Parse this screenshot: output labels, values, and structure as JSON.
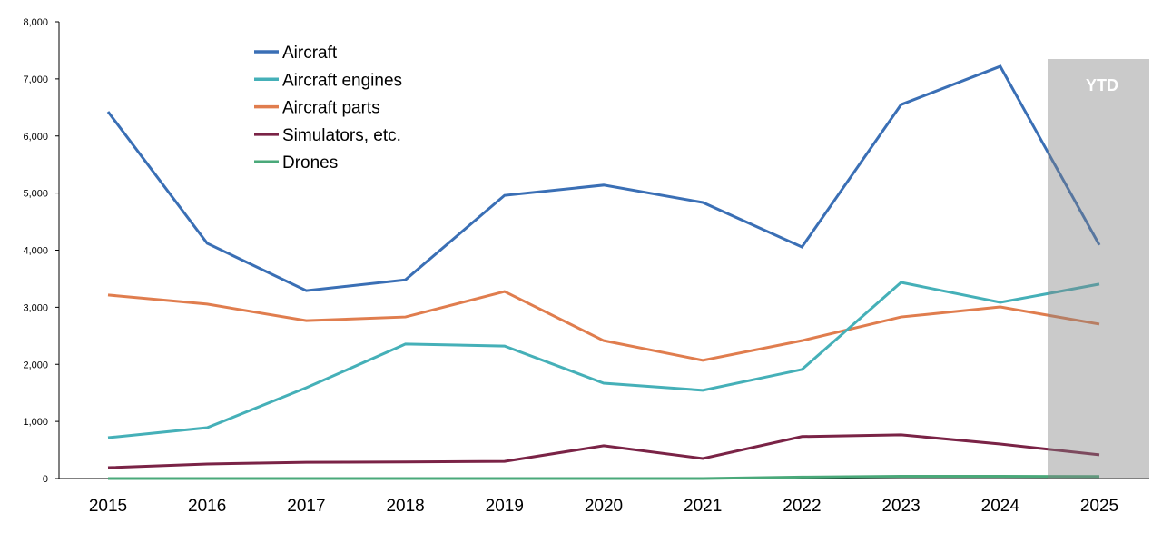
{
  "chart_data": {
    "type": "line",
    "title": "",
    "xlabel": "",
    "ylabel": "",
    "categories": [
      "2015",
      "2016",
      "2017",
      "2018",
      "2019",
      "2020",
      "2021",
      "2022",
      "2023",
      "2024",
      "2025"
    ],
    "ylim": [
      0,
      8000
    ],
    "yticks": [
      "0",
      "1,000",
      "2,000",
      "3,000",
      "4,000",
      "5,000",
      "6,000",
      "7,000",
      "8,000"
    ],
    "grid": false,
    "legend_position": "top-left",
    "annotation": {
      "label": "YTD",
      "category": "2025",
      "color": "#c8c8c8"
    },
    "series": [
      {
        "name": "Aircraft",
        "color": "#3a6fb5",
        "values": [
          6425,
          4120,
          3290,
          3480,
          4960,
          5140,
          4835,
          4055,
          6550,
          7220,
          4090
        ]
      },
      {
        "name": "Aircraft engines",
        "color": "#45b0b8",
        "values": [
          715,
          890,
          1590,
          2355,
          2320,
          1670,
          1545,
          1910,
          3435,
          3085,
          3405
        ]
      },
      {
        "name": "Aircraft parts",
        "color": "#e07d4e",
        "values": [
          3215,
          3055,
          2765,
          2830,
          3275,
          2415,
          2070,
          2415,
          2830,
          3005,
          2705
        ]
      },
      {
        "name": "Simulators, etc.",
        "color": "#7a2346",
        "values": [
          190,
          255,
          285,
          290,
          300,
          575,
          350,
          735,
          765,
          605,
          415
        ]
      },
      {
        "name": "Drones",
        "color": "#4aa97a",
        "values": [
          0,
          0,
          0,
          0,
          0,
          0,
          0,
          25,
          40,
          40,
          35
        ]
      }
    ]
  }
}
